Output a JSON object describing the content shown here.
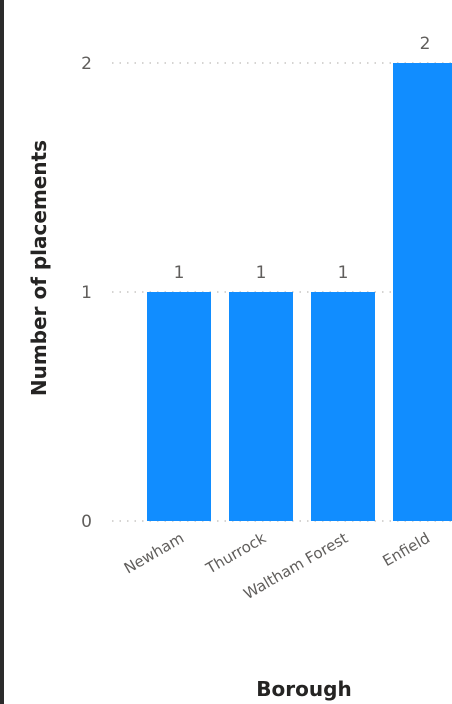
{
  "chart_data": {
    "type": "bar",
    "title": "",
    "xlabel": "Borough",
    "ylabel": "Number of placements",
    "categories": [
      "Newham",
      "Thurrock",
      "Waltham Forest",
      "Enfield"
    ],
    "values": [
      1,
      1,
      1,
      2
    ],
    "yticks": [
      0,
      1,
      2
    ],
    "ylim": [
      0,
      2
    ],
    "grid": true,
    "data_labels": true,
    "bar_color": "#118DFF"
  }
}
